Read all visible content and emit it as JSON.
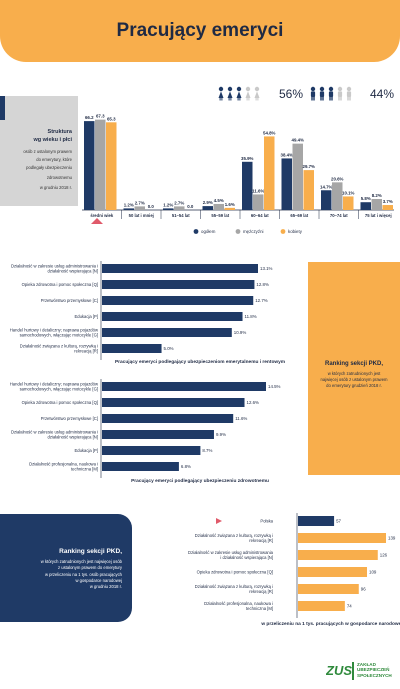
{
  "header": {
    "title": "Pracujący emeryci"
  },
  "structure": {
    "title_line1": "Struktura",
    "title_line2": "wg wieku i płci",
    "desc_lines": [
      "osób z ustalonym prawem",
      "do emerytury, które",
      "podlegały ubezpieczeniu",
      "zdrowotnemu",
      "w grudniu 2018 r."
    ]
  },
  "gender_share": {
    "women_pct": "56%",
    "men_pct": "44%",
    "women_color": "#1f3a66",
    "men_color": "#1f3a66",
    "faded_color": "#c9c9c9"
  },
  "colors": {
    "navy": "#1f3a66",
    "gray": "#a6a6a6",
    "orange": "#f8ae4c"
  },
  "chart_data": [
    {
      "type": "bar",
      "categories": [
        "średni wiek",
        "50 lat i mniej",
        "51–54 lat",
        "55–59 lat",
        "60–64 lat",
        "65–69 lat",
        "70–74 lat",
        "75 lat i więcej"
      ],
      "series": [
        {
          "name": "ogółem",
          "values": [
            66.2,
            1.2,
            1.2,
            2.9,
            35.9,
            38.4,
            14.7,
            5.8
          ],
          "labels": [
            "66.2",
            "1.2%",
            "1.2%",
            "2.9%",
            "35.9%",
            "38.4%",
            "14.7%",
            "5.8%"
          ]
        },
        {
          "name": "mężczyźni",
          "values": [
            67.3,
            2.7,
            2.7,
            4.5,
            11.6,
            49.4,
            20.6,
            8.2
          ],
          "labels": [
            "67.3",
            "2.7%",
            "2.7%",
            "4.5%",
            "11.6%",
            "49.4%",
            "20.6%",
            "8.2%"
          ]
        },
        {
          "name": "kobiety",
          "values": [
            65.3,
            0.0,
            0.0,
            1.6,
            54.8,
            29.7,
            10.1,
            3.7
          ],
          "labels": [
            "65.3",
            "0.0",
            "0.0",
            "1.6%",
            "54.8%",
            "29.7%",
            "10.1%",
            "3.7%"
          ]
        }
      ],
      "legend": {
        "labels": [
          "ogółem",
          "mężczyźni",
          "kobiety"
        ],
        "placement": "bottom"
      }
    },
    {
      "type": "bar",
      "orientation": "horizontal",
      "title": "Pracujący emeryci podlegający ubezpieczeniom emerytalnemu i rentowym",
      "categories": [
        "Działalność w zakresie usług administrowania i działalność wspierająca [N]",
        "Opieka zdrowotna i pomoc społeczna [Q]",
        "Przetwórstwo przemysłowe [C]",
        "Edukacja [P]",
        "Handel hurtowy i detaliczny; naprawa pojazdów samochodowych, włączając motocykle [G]",
        "Działalność związana z kulturą, rozrywką i rekreacją [R]"
      ],
      "values": [
        13.1,
        12.8,
        12.7,
        11.8,
        10.9,
        5.0
      ],
      "labels": [
        "13.1%",
        "12.8%",
        "12.7%",
        "11.8%",
        "10.9%",
        "5.0%"
      ]
    },
    {
      "type": "bar",
      "orientation": "horizontal",
      "title": "Pracujący emeryci podlegający ubezpieczeniu zdrowotnemu",
      "categories": [
        "Handel hurtowy i detaliczny; naprawa pojazdów samochodowych, włączając motocykle [G]",
        "Opieka zdrowotna i pomoc społeczna [Q]",
        "Przetwórstwo przemysłowe [C]",
        "Działalność w zakresie usług administrowania i działalność wspierająca [N]",
        "Edukacja [P]",
        "Działalność profesjonalna, naukowa i techniczna [M]"
      ],
      "values": [
        14.5,
        12.6,
        11.6,
        9.9,
        8.7,
        6.8
      ],
      "labels": [
        "14.5%",
        "12.6%",
        "11.6%",
        "9.9%",
        "8.7%",
        "6.8%"
      ]
    },
    {
      "type": "bar",
      "orientation": "horizontal",
      "title": "w przeliczeniu na 1 tys. pracujących w gospodarce narodowej",
      "categories": [
        "Polska",
        "Działalność związana z kulturą, rozrywką i rekreacją [R]",
        "Działalność w zakresie usług administrowania i działalność wspierająca [N]",
        "Opieka zdrowotna i pomoc społeczna [Q]",
        "Działalność związana z kulturą, rozrywką i rekreacją [R]",
        "Działalność profesjonalna, naukowa i techniczna [M]"
      ],
      "values": [
        57,
        139,
        126,
        109,
        96,
        74
      ],
      "labels": [
        "57",
        "139",
        "126",
        "109",
        "96",
        "74"
      ]
    }
  ],
  "ranking_right": {
    "title": "Ranking sekcji PKD,",
    "desc_lines": [
      "w których zatrudnionych jest",
      "najwięcej osób z ustalonym prawem",
      "do emerytury grudzień 2018 r."
    ]
  },
  "ranking_left": {
    "title": "Ranking sekcji PKD,",
    "desc_lines": [
      "w których zatrudnionych jest najwięcej osób",
      "z ustalonym prawem do emerytury",
      "w przeliczeniu na 1 tys. osób pracujących",
      "w gospodarce narodowej",
      "w grudniu 2018 r."
    ]
  },
  "logo": {
    "mark": "ZUS",
    "line1": "ZAKŁAD",
    "line2": "UBEZPIECZEŃ",
    "line3": "SPOŁECZNYCH",
    "color": "#2f8a3c"
  }
}
